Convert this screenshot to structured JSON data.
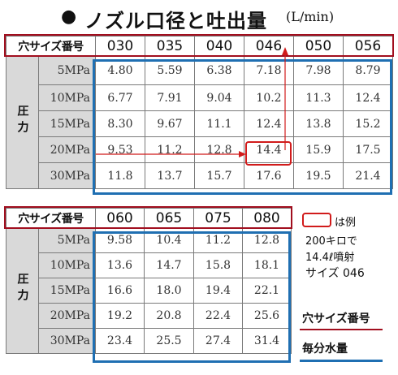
{
  "title": {
    "bullet": "●",
    "text": "ノズル口径と吐出量",
    "unit": "(L/min)"
  },
  "table1": {
    "header_label": "穴サイズ番号",
    "sizes": [
      "030",
      "035",
      "040",
      "046",
      "050",
      "056"
    ],
    "pressure_label": "圧力",
    "rows": [
      {
        "pressure": "5MPa",
        "values": [
          "4.80",
          "5.59",
          "6.38",
          "7.18",
          "7.98",
          "8.79"
        ]
      },
      {
        "pressure": "10MPa",
        "values": [
          "6.77",
          "7.91",
          "9.04",
          "10.2",
          "11.3",
          "12.4"
        ]
      },
      {
        "pressure": "15MPa",
        "values": [
          "8.30",
          "9.67",
          "11.1",
          "12.4",
          "13.8",
          "15.2"
        ]
      },
      {
        "pressure": "20MPa",
        "values": [
          "9.53",
          "11.2",
          "12.8",
          "14.4",
          "15.9",
          "17.5"
        ]
      },
      {
        "pressure": "30MPa",
        "values": [
          "11.8",
          "13.7",
          "15.7",
          "17.6",
          "19.5",
          "21.4"
        ]
      }
    ]
  },
  "table2": {
    "header_label": "穴サイズ番号",
    "sizes": [
      "060",
      "065",
      "075",
      "080"
    ],
    "pressure_label": "圧力",
    "rows": [
      {
        "pressure": "5MPa",
        "values": [
          "9.58",
          "10.4",
          "11.2",
          "12.8"
        ]
      },
      {
        "pressure": "10MPa",
        "values": [
          "13.6",
          "14.7",
          "15.8",
          "18.1"
        ]
      },
      {
        "pressure": "15MPa",
        "values": [
          "16.6",
          "18.0",
          "19.4",
          "22.1"
        ]
      },
      {
        "pressure": "20MPa",
        "values": [
          "19.2",
          "20.8",
          "22.4",
          "25.6"
        ]
      },
      {
        "pressure": "30MPa",
        "values": [
          "23.4",
          "25.5",
          "27.4",
          "31.4"
        ]
      }
    ]
  },
  "legend": {
    "example_suffix": "は例",
    "example_lines": [
      "200キロで",
      "14.4ℓ噴射",
      "サイズ 046"
    ],
    "red_label": "穴サイズ番号",
    "blue_label": "毎分水量"
  },
  "colors": {
    "red": "#a10e1e",
    "blue": "#1f6fb2",
    "highlight": "#d11b1b",
    "gray": "#d9d9d9"
  }
}
